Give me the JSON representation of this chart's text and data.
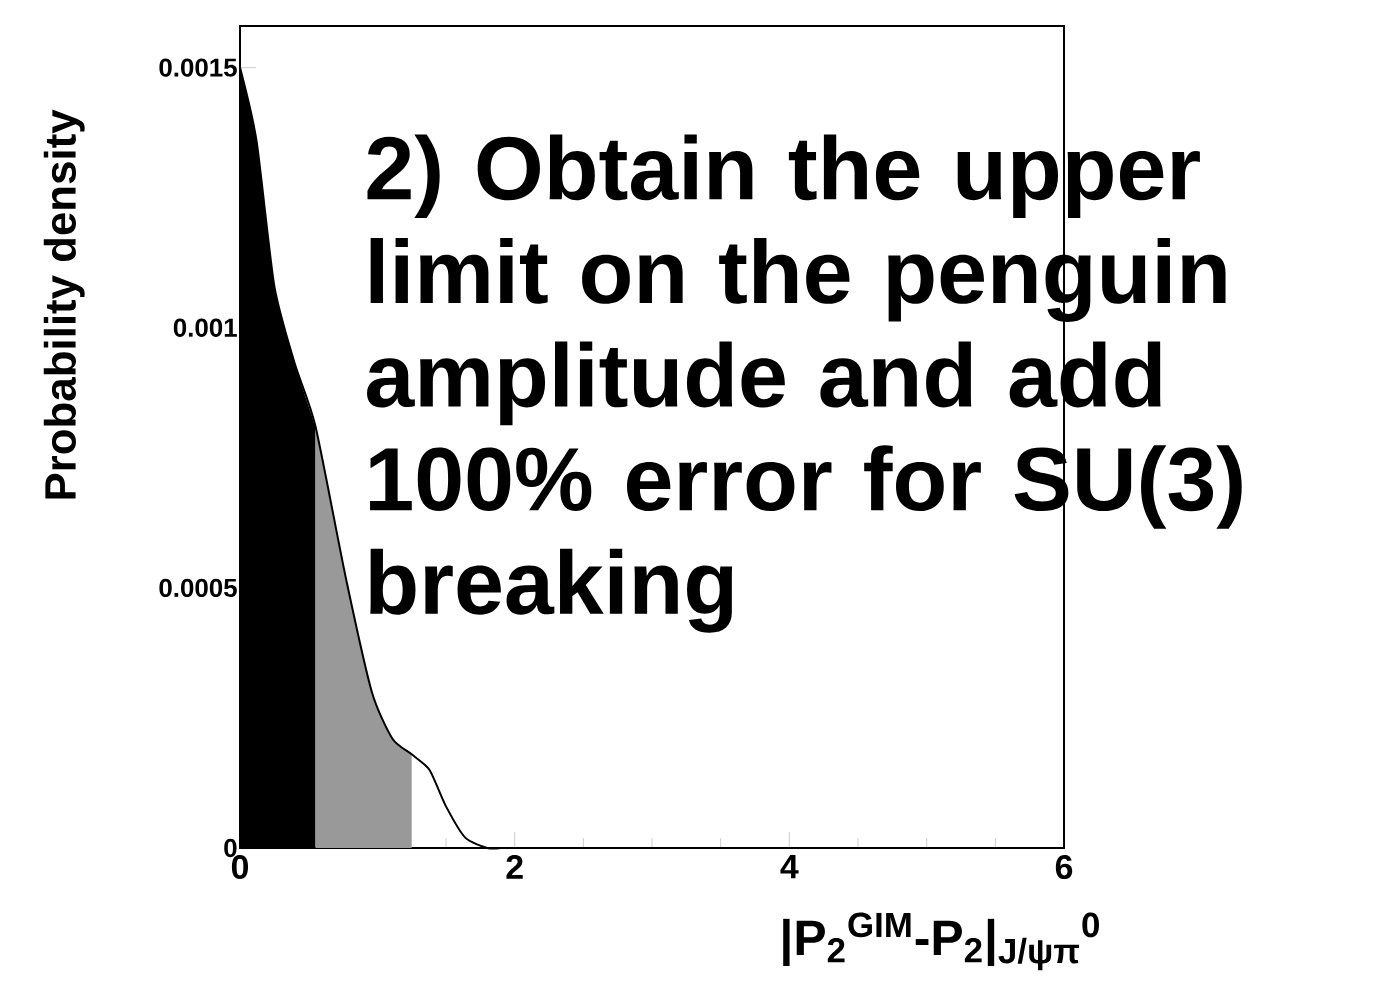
{
  "chart_data": {
    "type": "area",
    "xlabel": "|P$_{2}$$^{GIM}$-P$_{2}$|$_{J/ψπ}$$^{0}$",
    "ylabel": "Probability density",
    "annotations": [
      "2) Obtain the upper limit on the penguin amplitude and add 100% error for SU(3) breaking"
    ],
    "xlim": [
      0,
      6
    ],
    "ylim": [
      0,
      0.00158
    ],
    "xticks": [
      0,
      2,
      4,
      6
    ],
    "yticks": [
      0,
      0.0005,
      0.001,
      0.0015
    ],
    "series": [
      {
        "color": "#000000",
        "x": [
          0,
          0.12,
          0.25,
          0.4,
          0.55
        ],
        "values": [
          0.0015,
          0.00136,
          0.00108,
          0.00093,
          0.00081
        ]
      },
      {
        "color": "#999999",
        "x": [
          0.55,
          0.77,
          0.96,
          1.11,
          1.25
        ],
        "values": [
          0.00081,
          0.00052,
          0.0003,
          0.00021,
          0.00018
        ]
      },
      {
        "type": "line",
        "color": "#000000",
        "x": [
          0,
          0.12,
          0.25,
          0.4,
          0.55,
          0.77,
          0.96,
          1.11,
          1.25,
          1.38,
          1.5,
          1.64,
          1.8,
          1.9
        ],
        "values": [
          0.0015,
          0.00136,
          0.00108,
          0.00093,
          0.00081,
          0.00052,
          0.0003,
          0.00021,
          0.00018,
          0.00015,
          8e-05,
          2e-05,
          0,
          0
        ]
      }
    ]
  }
}
